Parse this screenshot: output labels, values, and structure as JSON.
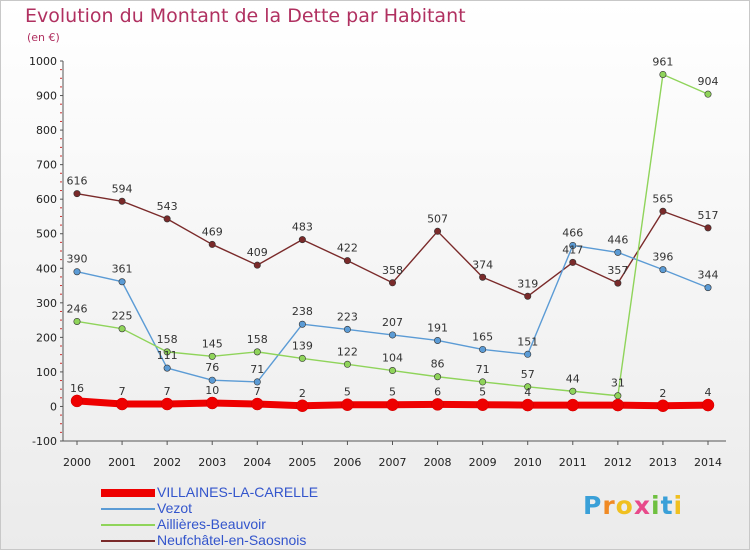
{
  "title": "Evolution du Montant de la Dette par Habitant",
  "subtitle": "(en €)",
  "brand": {
    "letters": [
      "P",
      "r",
      "o",
      "x",
      "i",
      "t",
      "i"
    ],
    "colors": [
      "#3aa0d8",
      "#f08a24",
      "#f0c020",
      "#e84a8a",
      "#6fc040",
      "#3aa0d8",
      "#f0c020"
    ]
  },
  "chart_data": {
    "type": "line",
    "x": [
      2000,
      2001,
      2002,
      2003,
      2004,
      2005,
      2006,
      2007,
      2008,
      2009,
      2010,
      2011,
      2012,
      2013,
      2014
    ],
    "ylim": [
      -100,
      1000
    ],
    "yticks": [
      -100,
      0,
      100,
      200,
      300,
      400,
      500,
      600,
      700,
      800,
      900,
      1000
    ],
    "grid": false,
    "legend": "bottom-left",
    "series": [
      {
        "name": "VILLAINES-LA-CARELLE",
        "color": "#ee0000",
        "values": [
          16,
          7,
          7,
          10,
          7,
          2,
          5,
          5,
          6,
          5,
          4,
          4,
          4,
          2,
          4
        ],
        "labels": [
          "16",
          "7",
          "7",
          "10",
          "7",
          "2",
          "5",
          "5",
          "6",
          "5",
          "4",
          "",
          "",
          "2",
          "4"
        ]
      },
      {
        "name": "Vezot",
        "color": "#5b9bd5",
        "values": [
          390,
          361,
          111,
          76,
          71,
          238,
          223,
          207,
          191,
          165,
          151,
          466,
          446,
          396,
          344
        ],
        "labels": [
          "390",
          "361",
          "111",
          "76",
          "71",
          "238",
          "223",
          "207",
          "191",
          "165",
          "151",
          "466",
          "446",
          "396",
          "344"
        ]
      },
      {
        "name": "Aillières-Beauvoir",
        "color": "#8fd45a",
        "values": [
          246,
          225,
          158,
          145,
          158,
          139,
          122,
          104,
          86,
          71,
          57,
          44,
          31,
          961,
          904
        ],
        "labels": [
          "246",
          "225",
          "158",
          "145",
          "158",
          "139",
          "122",
          "104",
          "86",
          "71",
          "57",
          "44",
          "31",
          "961",
          "904"
        ]
      },
      {
        "name": "Neufchâtel-en-Saosnois",
        "color": "#7a2a2a",
        "values": [
          616,
          594,
          543,
          469,
          409,
          483,
          422,
          358,
          507,
          374,
          319,
          417,
          357,
          565,
          517
        ],
        "labels": [
          "616",
          "594",
          "543",
          "469",
          "409",
          "483",
          "422",
          "358",
          "507",
          "374",
          "319",
          "417",
          "357",
          "565",
          "517"
        ]
      }
    ]
  }
}
